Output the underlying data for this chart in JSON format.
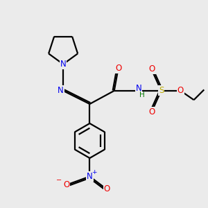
{
  "bg_color": "#ebebeb",
  "atom_colors": {
    "C": "#000000",
    "N": "#0000ee",
    "O": "#ee0000",
    "S": "#bbaa00",
    "H": "#007700"
  },
  "bond_color": "#000000",
  "line_width": 1.6,
  "fig_width": 3.0,
  "fig_height": 3.0,
  "dpi": 100
}
